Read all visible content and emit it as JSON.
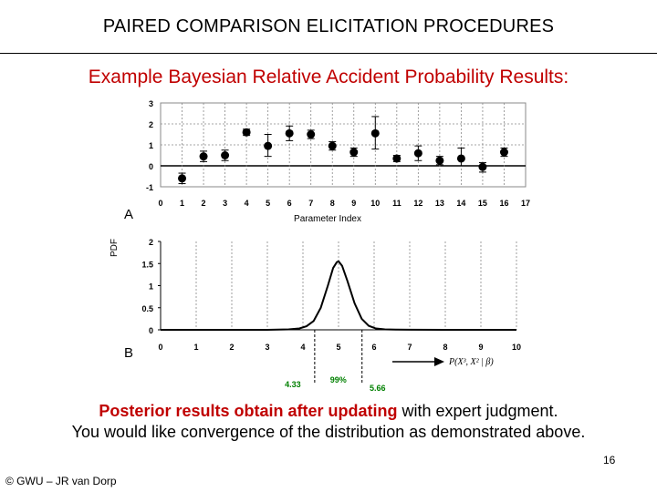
{
  "slide": {
    "title": "PAIRED COMPARISON ELICITATION PROCEDURES",
    "subtitle": "Example Bayesian Relative Accident Probability Results:",
    "panel_a_label": "A",
    "panel_b_label": "B",
    "caption_line1_red": "Posterior results obtain after updating",
    "caption_line1_rest": " with expert judgment.",
    "caption_line2": "You would like convergence of the distribution as demonstrated above.",
    "page_number": "16",
    "footer": "© GWU – JR van Dorp"
  },
  "colors": {
    "title_red": "#c00000",
    "interval_label_green": "#008000",
    "gridline": "#888888",
    "marker": "#000000"
  },
  "chart_data": [
    {
      "type": "scatter",
      "subtype": "error-bar",
      "xlabel": "Parameter Index",
      "ylabel": "",
      "xlim": [
        0,
        17
      ],
      "ylim": [
        -1,
        3
      ],
      "xticks": [
        "0",
        "1",
        "2",
        "3",
        "4",
        "5",
        "6",
        "7",
        "8",
        "9",
        "10",
        "11",
        "12",
        "13",
        "14",
        "15",
        "16",
        "17"
      ],
      "yticks": [
        "-1",
        "0",
        "1",
        "2",
        "3"
      ],
      "grid": "vertical and horizontal dashed",
      "points": [
        {
          "x": 1,
          "y": -0.6,
          "lo": -0.85,
          "hi": -0.35
        },
        {
          "x": 2,
          "y": 0.45,
          "lo": 0.2,
          "hi": 0.7
        },
        {
          "x": 3,
          "y": 0.5,
          "lo": 0.25,
          "hi": 0.75
        },
        {
          "x": 4,
          "y": 1.6,
          "lo": 1.45,
          "hi": 1.75
        },
        {
          "x": 5,
          "y": 0.95,
          "lo": 0.45,
          "hi": 1.5
        },
        {
          "x": 6,
          "y": 1.55,
          "lo": 1.2,
          "hi": 1.9
        },
        {
          "x": 7,
          "y": 1.5,
          "lo": 1.3,
          "hi": 1.7
        },
        {
          "x": 8,
          "y": 0.95,
          "lo": 0.75,
          "hi": 1.15
        },
        {
          "x": 9,
          "y": 0.65,
          "lo": 0.45,
          "hi": 0.85
        },
        {
          "x": 10,
          "y": 1.55,
          "lo": 0.8,
          "hi": 2.35
        },
        {
          "x": 11,
          "y": 0.35,
          "lo": 0.2,
          "hi": 0.5
        },
        {
          "x": 12,
          "y": 0.6,
          "lo": 0.25,
          "hi": 0.95
        },
        {
          "x": 13,
          "y": 0.25,
          "lo": 0.05,
          "hi": 0.45
        },
        {
          "x": 14,
          "y": 0.35,
          "lo": 0.0,
          "hi": 0.85
        },
        {
          "x": 15,
          "y": -0.05,
          "lo": -0.3,
          "hi": 0.15
        },
        {
          "x": 16,
          "y": 0.65,
          "lo": 0.45,
          "hi": 0.85
        }
      ]
    },
    {
      "type": "line",
      "xlabel": "",
      "ylabel": "PDF",
      "xlim": [
        0,
        10
      ],
      "ylim": [
        0,
        2
      ],
      "xticks": [
        "0",
        "1",
        "2",
        "3",
        "4",
        "5",
        "6",
        "7",
        "8",
        "9",
        "10"
      ],
      "yticks": [
        "0",
        "0.5",
        "1",
        "1.5",
        "2"
      ],
      "grid": "vertical dashed",
      "distribution": {
        "mean": 4.99,
        "peak_pdf": 1.55
      },
      "x": [
        0,
        1,
        2,
        3,
        3.6,
        3.9,
        4.1,
        4.3,
        4.5,
        4.7,
        4.85,
        4.95,
        5.0,
        5.1,
        5.25,
        5.45,
        5.65,
        5.85,
        6.05,
        6.3,
        6.6,
        7,
        8,
        10
      ],
      "y": [
        0,
        0,
        0,
        0,
        0.01,
        0.03,
        0.08,
        0.2,
        0.5,
        1.0,
        1.4,
        1.53,
        1.55,
        1.45,
        1.1,
        0.6,
        0.25,
        0.09,
        0.03,
        0.01,
        0.005,
        0.002,
        0,
        0
      ],
      "interval": {
        "lower": "4.33",
        "upper": "5.66",
        "label": "99%",
        "lower_value": 4.33,
        "upper_value": 5.66
      },
      "annotation": "P(X³, X² | β)"
    }
  ]
}
